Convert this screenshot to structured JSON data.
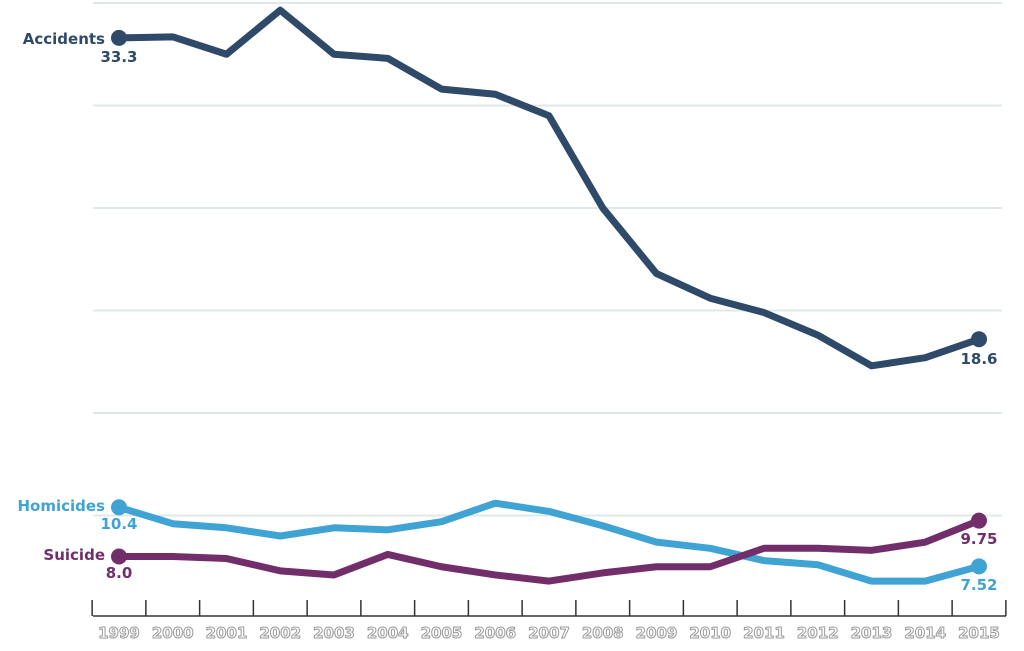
{
  "chart_data": {
    "type": "line",
    "title": "",
    "xlabel": "",
    "ylabel": "",
    "x": [
      1999,
      2000,
      2001,
      2002,
      2003,
      2004,
      2005,
      2006,
      2007,
      2008,
      2009,
      2010,
      2011,
      2012,
      2013,
      2014,
      2015
    ],
    "ylim": [
      6,
      35
    ],
    "y_gridlines": [
      10,
      15,
      20,
      25,
      30,
      35
    ],
    "grid": true,
    "legend": "direct labels at line starts",
    "series": [
      {
        "name": "Accidents",
        "color": "#2e4a68",
        "values": [
          33.3,
          33.35,
          32.5,
          34.65,
          32.5,
          32.3,
          30.8,
          30.55,
          29.5,
          25.0,
          21.8,
          20.6,
          19.9,
          18.8,
          17.3,
          17.7,
          18.6
        ],
        "start_label": "33.3",
        "end_label": "18.6"
      },
      {
        "name": "Homicides",
        "color": "#3fa3d4",
        "values": [
          10.4,
          9.6,
          9.4,
          9.0,
          9.4,
          9.3,
          9.7,
          10.6,
          10.2,
          9.5,
          8.7,
          8.4,
          7.8,
          7.6,
          6.8,
          6.8,
          7.52
        ],
        "start_label": "10.4",
        "end_label": "7.52"
      },
      {
        "name": "Suicide",
        "color": "#722e6b",
        "values": [
          8.0,
          8.0,
          7.9,
          7.3,
          7.1,
          8.1,
          7.5,
          7.1,
          6.8,
          7.2,
          7.5,
          7.5,
          8.4,
          8.4,
          8.3,
          8.7,
          9.75
        ],
        "start_label": "8.0",
        "end_label": "9.75"
      }
    ],
    "tick_labels": [
      "1999",
      "2000",
      "2001",
      "2002",
      "2003",
      "2004",
      "2005",
      "2006",
      "2007",
      "2008",
      "2009",
      "2010",
      "2011",
      "2012",
      "2013",
      "2014",
      "2015"
    ]
  }
}
